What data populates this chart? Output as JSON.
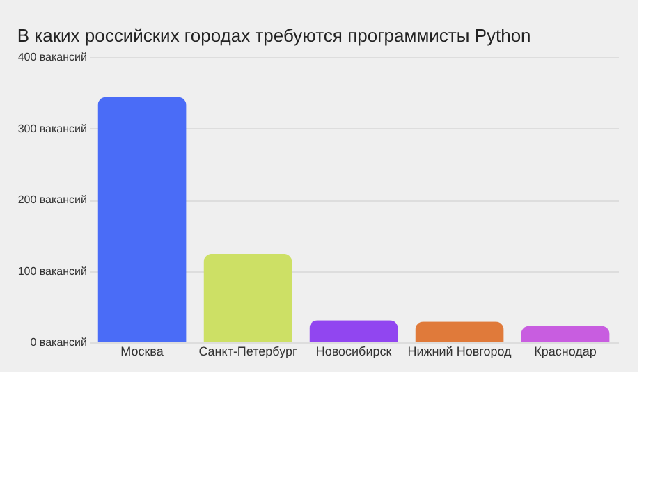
{
  "chart_data": {
    "type": "bar",
    "title": "В каких российских городах требуются программисты Python",
    "categories": [
      "Москва",
      "Санкт-Петербург",
      "Новосибирск",
      "Нижний Новгород",
      "Краснодар"
    ],
    "values": [
      344,
      124,
      31,
      29,
      23
    ],
    "colors": [
      "#4a6cf7",
      "#cde065",
      "#9146f0",
      "#e07a3a",
      "#c85de0"
    ],
    "ylim": [
      0,
      400
    ],
    "yticks": [
      {
        "value": 0,
        "label": "0 вакансий"
      },
      {
        "value": 100,
        "label": "100 вакансий"
      },
      {
        "value": 200,
        "label": "200 вакансий"
      },
      {
        "value": 300,
        "label": "300 вакансий"
      },
      {
        "value": 400,
        "label": "400 вакансий"
      }
    ],
    "grid": "y"
  }
}
